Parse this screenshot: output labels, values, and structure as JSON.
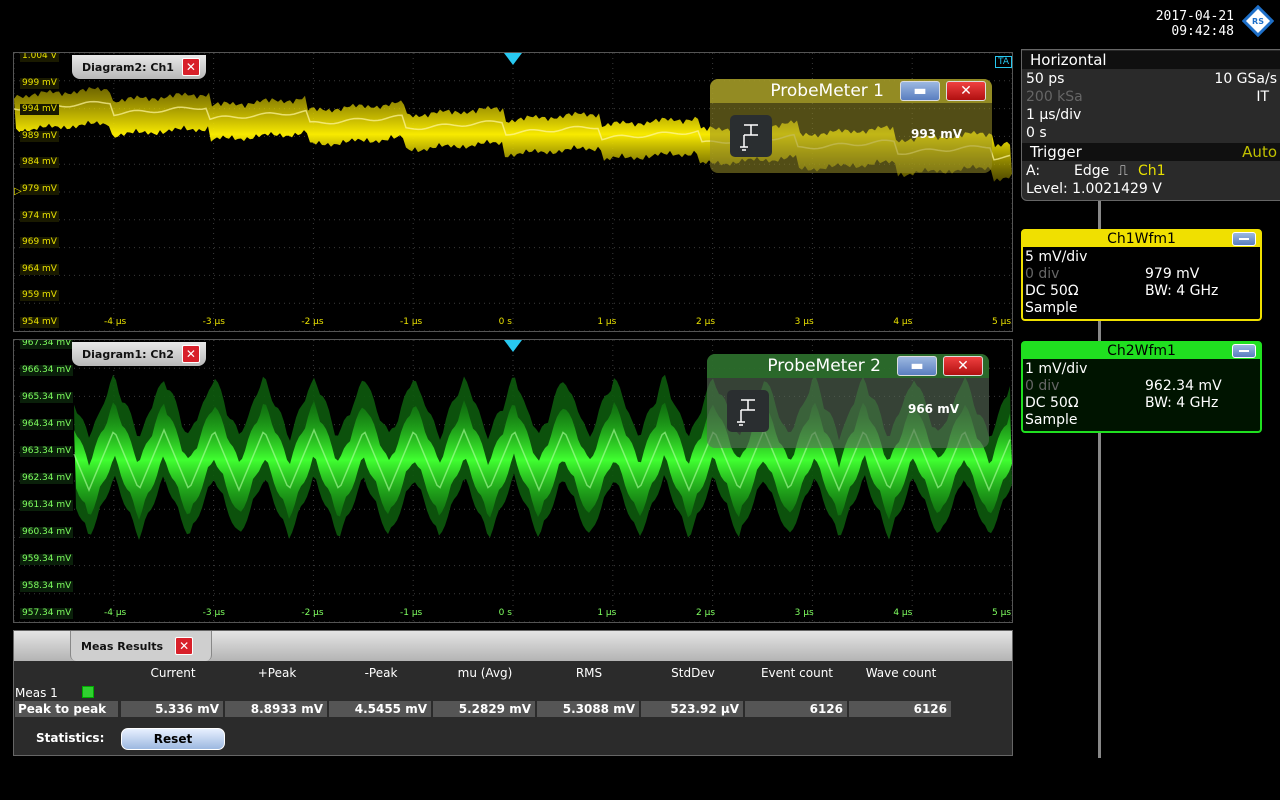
{
  "datetime": {
    "date": "2017-04-21",
    "time": "09:42:48"
  },
  "colors": {
    "ch1": "#f0e000",
    "ch2": "#20e020",
    "accent": "#3a8fd8"
  },
  "diagram2": {
    "tab_label": "Diagram2: Ch1",
    "y_ticks": [
      "1.004 V",
      "999 mV",
      "994 mV",
      "989 mV",
      "984 mV",
      "979 mV",
      "974 mV",
      "969 mV",
      "964 mV",
      "959 mV",
      "954 mV"
    ],
    "x_ticks": [
      "-4 µs",
      "-3 µs",
      "-2 µs",
      "-1 µs",
      "0 s",
      "1 µs",
      "2 µs",
      "3 µs",
      "4 µs",
      "5 µs"
    ],
    "trigger_label": "TA"
  },
  "diagram1": {
    "tab_label": "Diagram1: Ch2",
    "y_ticks": [
      "967.34 mV",
      "966.34 mV",
      "965.34 mV",
      "964.34 mV",
      "963.34 mV",
      "962.34 mV",
      "961.34 mV",
      "960.34 mV",
      "959.34 mV",
      "958.34 mV",
      "957.34 mV"
    ],
    "x_ticks": [
      "-4 µs",
      "-3 µs",
      "-2 µs",
      "-1 µs",
      "0 s",
      "1 µs",
      "2 µs",
      "3 µs",
      "4 µs",
      "5 µs"
    ]
  },
  "probemeter1": {
    "title": "ProbeMeter 1",
    "value": "993 mV"
  },
  "probemeter2": {
    "title": "ProbeMeter 2",
    "value": "966 mV"
  },
  "horizontal": {
    "title": "Horizontal",
    "resolution": "50 ps",
    "sample_rate": "10 GSa/s",
    "record_length": "200 kSa",
    "mode": "IT",
    "time_scale": "1 µs/div",
    "position": "0 s"
  },
  "trigger": {
    "title": "Trigger",
    "mode": "Auto",
    "source_label": "A:",
    "type": "Edge",
    "source": "Ch1",
    "level": "Level: 1.0021429 V"
  },
  "ch1wfm": {
    "title": "Ch1Wfm1",
    "scale": "5 mV/div",
    "offset_div": "0 div",
    "offset": "979 mV",
    "coupling": "DC 50Ω",
    "bw": "BW: 4 GHz",
    "acq": "Sample"
  },
  "ch2wfm": {
    "title": "Ch2Wfm1",
    "scale": "1 mV/div",
    "offset_div": "0 div",
    "offset": "962.34 mV",
    "coupling": "DC 50Ω",
    "bw": "BW: 4 GHz",
    "acq": "Sample"
  },
  "meas": {
    "tab_label": "Meas Results",
    "columns": [
      "Current",
      "+Peak",
      "-Peak",
      "mu (Avg)",
      "RMS",
      "StdDev",
      "Event count",
      "Wave count"
    ],
    "row_group": "Meas 1",
    "row_label": "Peak to peak",
    "values": [
      "5.336 mV",
      "8.8933 mV",
      "4.5455 mV",
      "5.2829 mV",
      "5.3088 mV",
      "523.92 µV",
      "6126",
      "6126"
    ],
    "statistics_label": "Statistics:",
    "reset_label": "Reset"
  }
}
